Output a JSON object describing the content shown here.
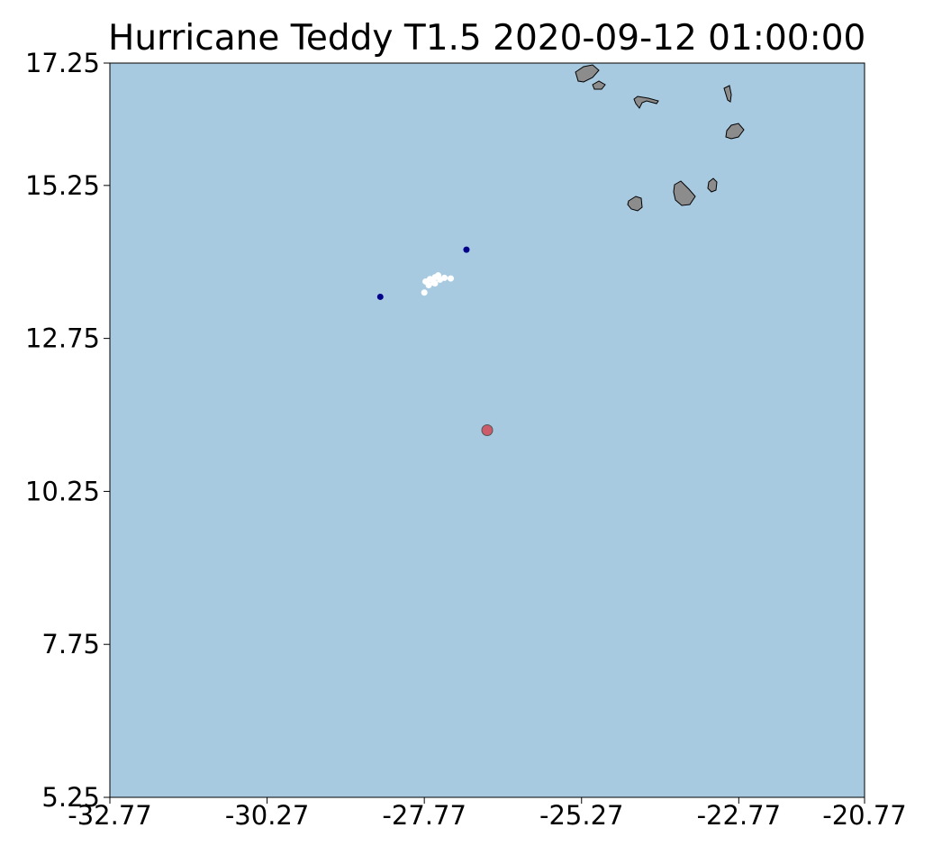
{
  "title": "Hurricane Teddy T1.5 2020-09-12 01:00:00",
  "map": {
    "ocean_color": "#a7cae0",
    "land_color": "#8c8c8c",
    "lon_range": [
      -32.77,
      -20.77
    ],
    "lat_range": [
      5.25,
      17.25
    ],
    "x_ticks": [
      "-32.77",
      "-30.27",
      "-27.77",
      "-25.27",
      "-22.77",
      "-20.77"
    ],
    "y_ticks": [
      "17.25",
      "15.25",
      "12.75",
      "10.25",
      "7.75",
      "5.25"
    ]
  },
  "points": {
    "center": {
      "lon": -26.77,
      "lat": 11.25,
      "color": "#cd5c6a"
    },
    "dark_points": [
      {
        "lon": -28.47,
        "lat": 13.43,
        "color": "#00008b"
      },
      {
        "lon": -27.1,
        "lat": 14.2,
        "color": "#00008b"
      }
    ],
    "white_cluster": [
      {
        "lon": -27.75,
        "lat": 13.68
      },
      {
        "lon": -27.68,
        "lat": 13.72
      },
      {
        "lon": -27.6,
        "lat": 13.75
      },
      {
        "lon": -27.52,
        "lat": 13.71
      },
      {
        "lon": -27.62,
        "lat": 13.66
      },
      {
        "lon": -27.7,
        "lat": 13.62
      },
      {
        "lon": -27.55,
        "lat": 13.78
      },
      {
        "lon": -27.45,
        "lat": 13.74
      },
      {
        "lon": -27.35,
        "lat": 13.73
      },
      {
        "lon": -27.77,
        "lat": 13.5
      },
      {
        "lon": -27.6,
        "lat": 13.65
      }
    ],
    "white_color": "#ffffff"
  }
}
